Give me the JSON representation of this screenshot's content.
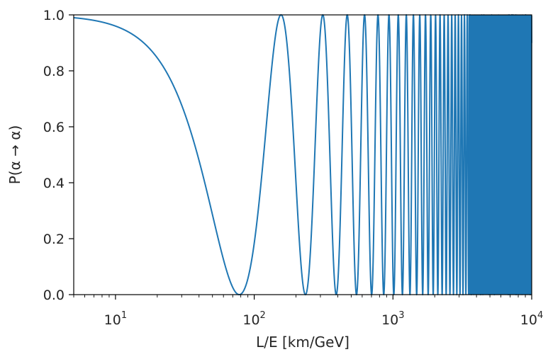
{
  "chart_data": {
    "type": "line",
    "xlabel": "L/E [km/GeV]",
    "ylabel": "P(α → α)",
    "xscale": "log",
    "xlim": [
      5,
      10000
    ],
    "ylim": [
      0.0,
      1.0
    ],
    "grid": false,
    "legend": "none",
    "line_color": "#1f77b4",
    "x_ticks": [
      {
        "base": "10",
        "exp": "1",
        "value": 10
      },
      {
        "base": "10",
        "exp": "2",
        "value": 100
      },
      {
        "base": "10",
        "exp": "3",
        "value": 1000
      },
      {
        "base": "10",
        "exp": "4",
        "value": 10000
      }
    ],
    "y_ticks": [
      {
        "label": "0.0",
        "value": 0.0
      },
      {
        "label": "0.2",
        "value": 0.2
      },
      {
        "label": "0.4",
        "value": 0.4
      },
      {
        "label": "0.6",
        "value": 0.6
      },
      {
        "label": "0.8",
        "value": 0.8
      },
      {
        "label": "1.0",
        "value": 1.0
      }
    ],
    "series": [
      {
        "x": [
          5,
          10,
          20,
          30,
          40,
          50,
          60,
          70,
          78,
          90,
          110,
          130,
          156,
          180,
          200,
          234,
          260,
          290,
          312,
          340,
          370,
          390,
          420,
          450,
          468,
          500,
          546,
          580,
          624,
          660,
          702
        ],
        "y": [
          0.99,
          0.96,
          0.85,
          0.69,
          0.5,
          0.31,
          0.15,
          0.04,
          0.0,
          0.08,
          0.5,
          0.88,
          1.0,
          0.88,
          0.6,
          0.0,
          0.46,
          0.93,
          1.0,
          0.82,
          0.26,
          0.0,
          0.3,
          0.89,
          1.0,
          0.77,
          0.0,
          0.54,
          1.0,
          0.7,
          0.0
        ]
      }
    ]
  }
}
